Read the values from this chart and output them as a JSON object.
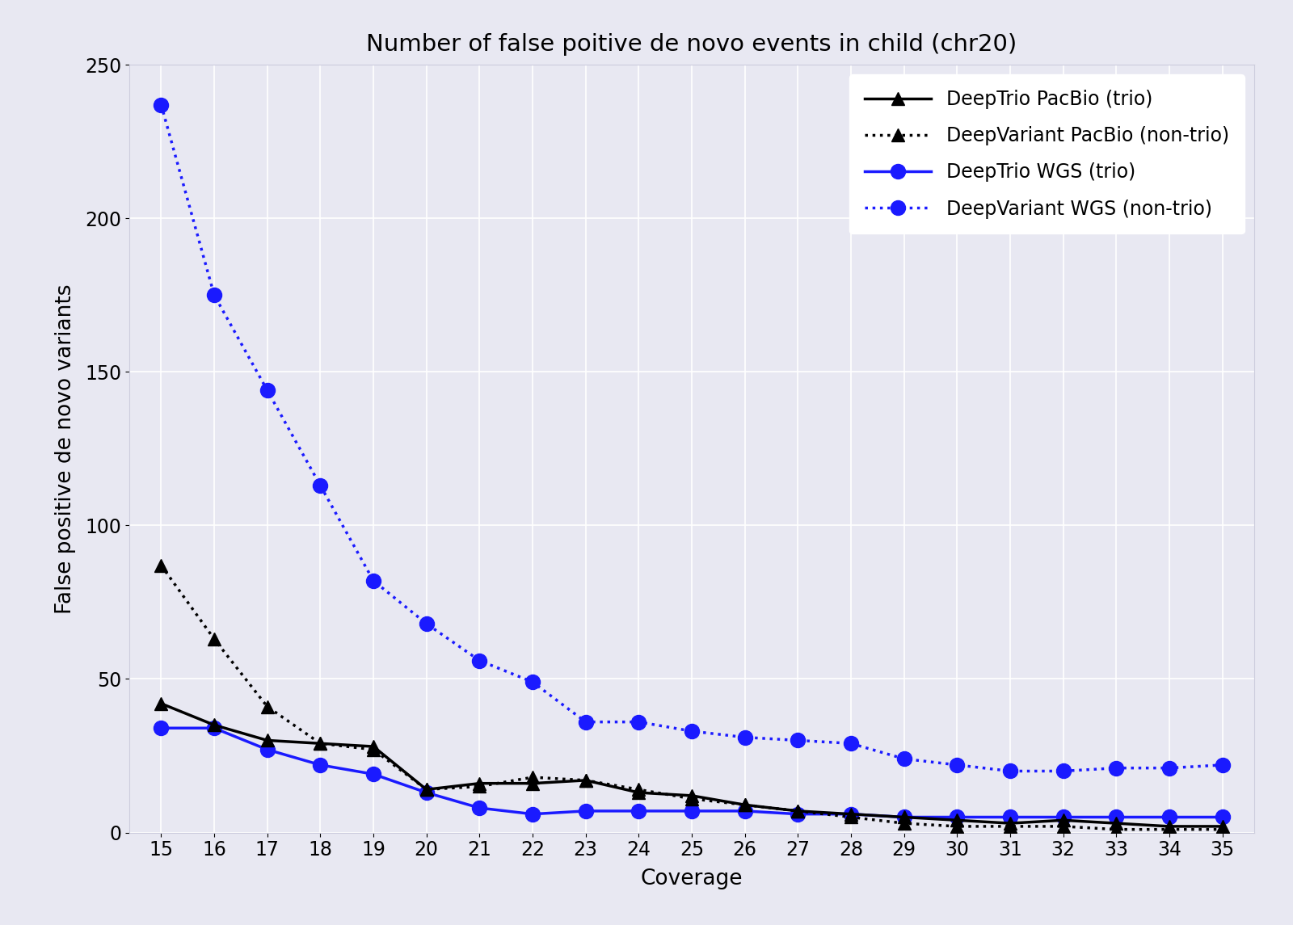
{
  "title": "Number of false poitive de novo events in child (chr20)",
  "xlabel": "Coverage",
  "ylabel": "False positive de novo variants",
  "x": [
    15,
    16,
    17,
    18,
    19,
    20,
    21,
    22,
    23,
    24,
    25,
    26,
    27,
    28,
    29,
    30,
    31,
    32,
    33,
    34,
    35
  ],
  "deeptrio_pacbio": [
    42,
    35,
    30,
    29,
    28,
    14,
    16,
    16,
    17,
    13,
    12,
    9,
    7,
    6,
    5,
    4,
    3,
    4,
    3,
    2,
    2
  ],
  "deepvariant_pacbio": [
    87,
    63,
    41,
    29,
    27,
    14,
    15,
    18,
    17,
    14,
    11,
    9,
    7,
    5,
    3,
    2,
    2,
    2,
    1,
    1,
    1
  ],
  "deeptrio_wgs": [
    34,
    34,
    27,
    22,
    19,
    13,
    8,
    6,
    7,
    7,
    7,
    7,
    6,
    6,
    5,
    5,
    5,
    5,
    5,
    5,
    5
  ],
  "deepvariant_wgs": [
    237,
    175,
    144,
    113,
    82,
    68,
    56,
    49,
    36,
    36,
    33,
    31,
    30,
    29,
    24,
    22,
    20,
    20,
    21,
    21,
    22
  ],
  "color_black": "#000000",
  "color_blue": "#1a1aff",
  "background_color": "#e8e8f2",
  "ylim": [
    0,
    250
  ],
  "yticks": [
    0,
    50,
    100,
    150,
    200,
    250
  ],
  "figsize": [
    16.0,
    11.45
  ],
  "dpi": 100,
  "title_fontsize": 21,
  "axis_label_fontsize": 19,
  "tick_fontsize": 17,
  "legend_fontsize": 17,
  "linewidth": 2.5,
  "marker_size_triangle": 11,
  "marker_size_circle": 13
}
